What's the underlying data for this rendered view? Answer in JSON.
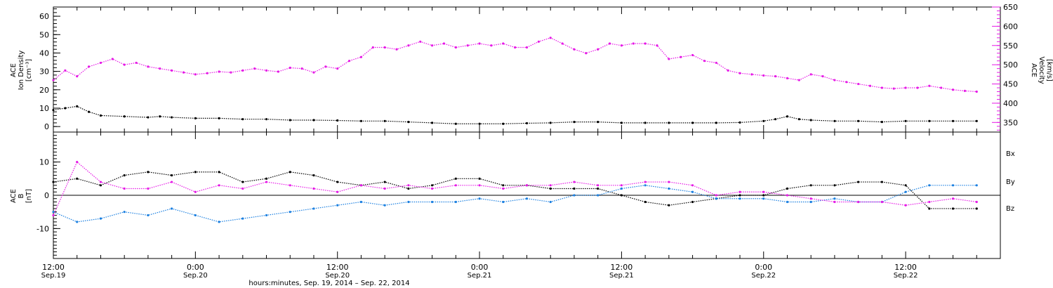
{
  "colors": {
    "density": "#000000",
    "velocity": "#e619e6",
    "bx": "#000000",
    "by": "#1a7fe0",
    "bz": "#e619e6"
  },
  "chart_data": [
    {
      "type": "scatter",
      "panel": "plasma",
      "x_unit": "hours since 12:00 Sep.19, 2014",
      "xlim": [
        0,
        80
      ],
      "ylabel_left": [
        "ACE",
        "Ion Density",
        "[cm⁻³]"
      ],
      "ylim_left": [
        -3,
        65
      ],
      "yticks_left": [
        0,
        10,
        20,
        30,
        40,
        50,
        60
      ],
      "ylabel_right": [
        "ACE",
        "Velocity",
        "[km/s]"
      ],
      "ylim_right": [
        325,
        650
      ],
      "yticks_right": [
        350,
        400,
        450,
        500,
        550,
        600,
        650
      ],
      "series": [
        {
          "name": "density",
          "axis": "left",
          "x": [
            0,
            1,
            2,
            3,
            4,
            6,
            8,
            9,
            10,
            12,
            14,
            16,
            18,
            20,
            22,
            24,
            26,
            28,
            30,
            32,
            34,
            36,
            38,
            40,
            42,
            44,
            46,
            48,
            50,
            52,
            54,
            56,
            58,
            60,
            61,
            62,
            63,
            64,
            66,
            68,
            70,
            72,
            74,
            76,
            78
          ],
          "y": [
            9,
            10,
            11,
            8,
            6,
            5.5,
            5,
            5.5,
            5,
            4.5,
            4.5,
            4,
            4,
            3.5,
            3.5,
            3.3,
            3,
            3,
            2.5,
            2,
            1.5,
            1.5,
            1.5,
            1.8,
            2,
            2.5,
            2.5,
            2,
            2,
            2,
            2,
            2,
            2.2,
            3,
            4,
            5.5,
            4,
            3.5,
            3,
            3,
            2.5,
            3,
            3,
            3,
            3
          ]
        },
        {
          "name": "velocity",
          "axis": "right",
          "x": [
            0,
            1,
            2,
            3,
            4,
            5,
            6,
            7,
            8,
            9,
            10,
            11,
            12,
            13,
            14,
            15,
            16,
            17,
            18,
            19,
            20,
            21,
            22,
            23,
            24,
            25,
            26,
            27,
            28,
            29,
            30,
            31,
            32,
            33,
            34,
            35,
            36,
            37,
            38,
            39,
            40,
            41,
            42,
            43,
            44,
            45,
            46,
            47,
            48,
            49,
            50,
            51,
            52,
            53,
            54,
            55,
            56,
            57,
            58,
            59,
            60,
            61,
            62,
            63,
            64,
            65,
            66,
            67,
            68,
            69,
            70,
            71,
            72,
            73,
            74,
            75,
            76,
            77,
            78
          ],
          "y": [
            460,
            485,
            470,
            495,
            505,
            515,
            500,
            505,
            495,
            490,
            485,
            480,
            475,
            478,
            482,
            480,
            485,
            490,
            485,
            482,
            492,
            490,
            480,
            495,
            490,
            510,
            520,
            545,
            545,
            540,
            550,
            560,
            550,
            555,
            545,
            550,
            555,
            550,
            555,
            545,
            545,
            560,
            570,
            555,
            540,
            530,
            540,
            555,
            550,
            555,
            555,
            550,
            515,
            520,
            525,
            510,
            505,
            485,
            478,
            475,
            472,
            470,
            465,
            460,
            475,
            470,
            460,
            455,
            450,
            445,
            440,
            438,
            440,
            440,
            445,
            440,
            435,
            432,
            430
          ]
        }
      ]
    },
    {
      "type": "scatter",
      "panel": "magnetic",
      "x_unit": "hours since 12:00 Sep.19, 2014",
      "xlim": [
        0,
        80
      ],
      "ylabel_left": [
        "ACE",
        "B",
        "[nT]"
      ],
      "ylim_left": [
        -19,
        19
      ],
      "yticks_left": [
        -10,
        0,
        10
      ],
      "series": [
        {
          "name": "Bx",
          "x": [
            0,
            2,
            4,
            6,
            8,
            10,
            12,
            14,
            16,
            18,
            20,
            22,
            24,
            26,
            28,
            30,
            32,
            34,
            36,
            38,
            40,
            42,
            44,
            46,
            48,
            50,
            52,
            54,
            56,
            58,
            60,
            62,
            64,
            66,
            68,
            70,
            72,
            74,
            76,
            78
          ],
          "y": [
            4,
            5,
            3,
            6,
            7,
            6,
            7,
            7,
            4,
            5,
            7,
            6,
            4,
            3,
            4,
            2,
            3,
            5,
            5,
            3,
            3,
            2,
            2,
            2,
            0,
            -2,
            -3,
            -2,
            -1,
            0,
            0,
            2,
            3,
            3,
            4,
            4,
            3,
            -4,
            -4,
            -4
          ]
        },
        {
          "name": "By",
          "x": [
            0,
            2,
            4,
            6,
            8,
            10,
            12,
            14,
            16,
            18,
            20,
            22,
            24,
            26,
            28,
            30,
            32,
            34,
            36,
            38,
            40,
            42,
            44,
            46,
            48,
            50,
            52,
            54,
            56,
            58,
            60,
            62,
            64,
            66,
            68,
            70,
            72,
            74,
            76,
            78
          ],
          "y": [
            -5,
            -8,
            -7,
            -5,
            -6,
            -4,
            -6,
            -8,
            -7,
            -6,
            -5,
            -4,
            -3,
            -2,
            -3,
            -2,
            -2,
            -2,
            -1,
            -2,
            -1,
            -2,
            0,
            0,
            2,
            3,
            2,
            1,
            -1,
            -1,
            -1,
            -2,
            -2,
            -1,
            -2,
            -2,
            1,
            3,
            3,
            3
          ]
        },
        {
          "name": "Bz",
          "x": [
            0,
            2,
            4,
            6,
            8,
            10,
            12,
            14,
            16,
            18,
            20,
            22,
            24,
            26,
            28,
            30,
            32,
            34,
            36,
            38,
            40,
            42,
            44,
            46,
            48,
            50,
            52,
            54,
            56,
            58,
            60,
            62,
            64,
            66,
            68,
            70,
            72,
            74,
            76,
            78
          ],
          "y": [
            -6,
            10,
            4,
            2,
            2,
            4,
            1,
            3,
            2,
            4,
            3,
            2,
            1,
            3,
            2,
            3,
            2,
            3,
            3,
            2,
            3,
            3,
            4,
            3,
            3,
            4,
            4,
            3,
            0,
            1,
            1,
            0,
            -1,
            -2,
            -2,
            -2,
            -3,
            -2,
            -1,
            -2
          ]
        }
      ],
      "legend": [
        "Bx",
        "By",
        "Bz"
      ],
      "legend_position": "right"
    }
  ],
  "xaxis": {
    "tick_labels": [
      {
        "x": 0,
        "time": "12:00",
        "date": "Sep.19"
      },
      {
        "x": 12,
        "time": "0:00",
        "date": "Sep.20"
      },
      {
        "x": 24,
        "time": "12:00",
        "date": "Sep.20"
      },
      {
        "x": 36,
        "time": "0:00",
        "date": "Sep.21"
      },
      {
        "x": 48,
        "time": "12:00",
        "date": "Sep.21"
      },
      {
        "x": 60,
        "time": "0:00",
        "date": "Sep.22"
      },
      {
        "x": 72,
        "time": "12:00",
        "date": "Sep.22"
      }
    ],
    "title": "hours:minutes, Sep. 19, 2014 – Sep. 22, 2014"
  }
}
